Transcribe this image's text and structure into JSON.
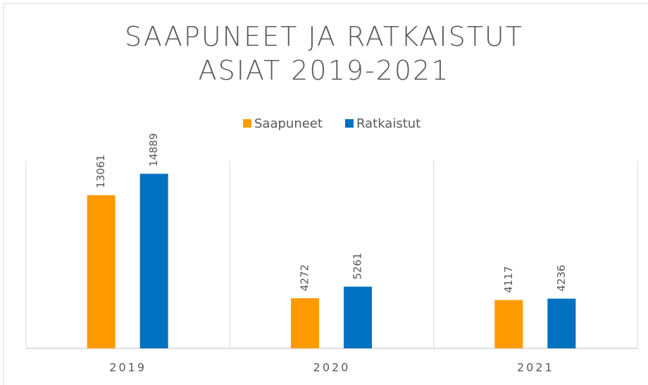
{
  "chart_data": {
    "type": "bar",
    "title": "SAAPUNEET JA RATKAISTUT ASIAT 2019-2021",
    "categories": [
      "2019",
      "2020",
      "2021"
    ],
    "series": [
      {
        "name": "Saapuneet",
        "color": "#FF9A00",
        "values": [
          13061,
          4272,
          4117
        ]
      },
      {
        "name": "Ratkaistut",
        "color": "#0070C0",
        "values": [
          14889,
          5261,
          4236
        ]
      }
    ],
    "ylim": [
      0,
      16000
    ],
    "legend": "top"
  }
}
